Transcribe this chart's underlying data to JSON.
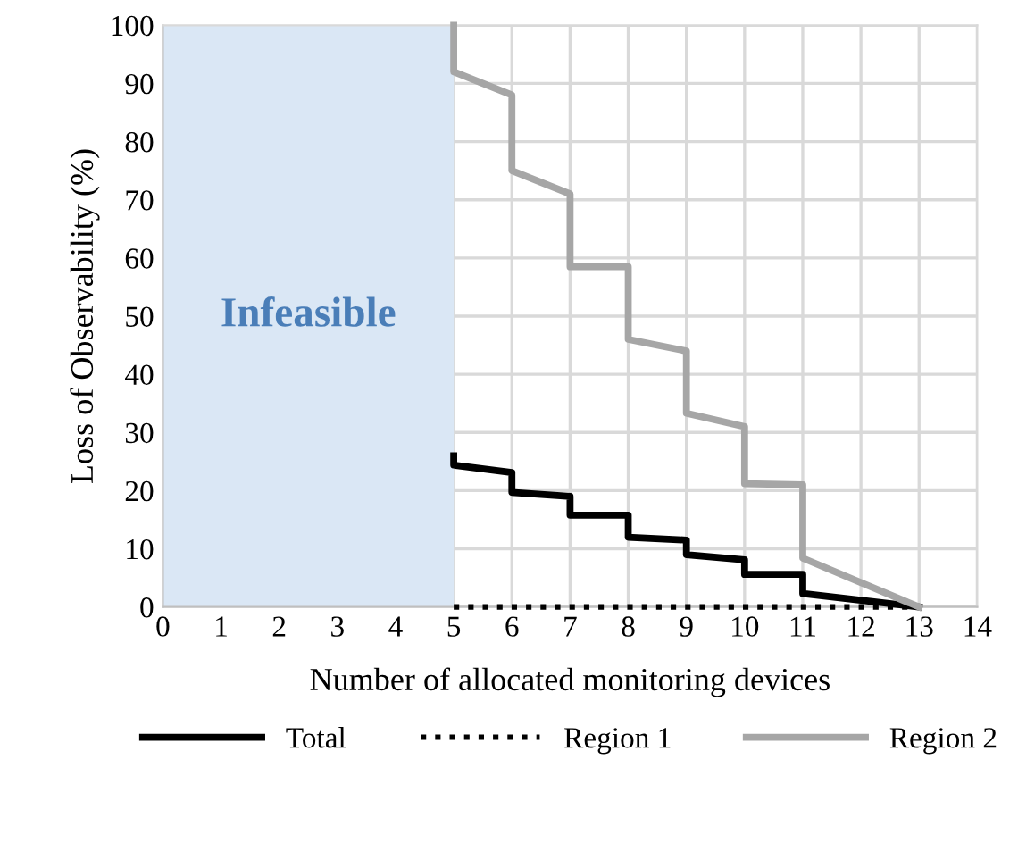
{
  "chart_data": {
    "type": "line",
    "xlabel": "Number of allocated monitoring devices",
    "ylabel": "Loss of Observability (%)",
    "xlim": [
      0,
      14
    ],
    "ylim": [
      0,
      100
    ],
    "xticks": [
      0,
      1,
      2,
      3,
      4,
      5,
      6,
      7,
      8,
      9,
      10,
      11,
      12,
      13,
      14
    ],
    "yticks": [
      0,
      10,
      20,
      30,
      40,
      50,
      60,
      70,
      80,
      90,
      100
    ],
    "grid": true,
    "legend": "bottom",
    "marker": "none",
    "bands": [
      {
        "axis": "x",
        "from": 0,
        "to": 5,
        "label": "Infeasible",
        "color": "#dae7f5"
      }
    ],
    "series": [
      {
        "name": "Total",
        "color": "#000000",
        "line_style": "solid",
        "x": [
          5,
          5,
          6,
          6,
          7,
          7,
          8,
          8,
          9,
          9,
          10,
          10,
          11,
          11,
          13
        ],
        "values": [
          26,
          24.4,
          23.1,
          19.7,
          19,
          15.8,
          15.8,
          12,
          11.5,
          9,
          8.1,
          5.6,
          5.6,
          2.3,
          0
        ]
      },
      {
        "name": "Region 1",
        "color": "#000000",
        "line_style": "dotted",
        "x": [
          5,
          13
        ],
        "values": [
          0,
          0
        ]
      },
      {
        "name": "Region 2",
        "color": "#a6a6a6",
        "line_style": "solid",
        "x": [
          5,
          5,
          6,
          6,
          7,
          7,
          8,
          8,
          9,
          9,
          10,
          10,
          11,
          11,
          13
        ],
        "values": [
          100,
          92,
          88,
          75,
          71,
          58.5,
          58.5,
          46,
          44,
          33.3,
          31,
          21.2,
          21,
          8.4,
          0
        ]
      }
    ]
  }
}
